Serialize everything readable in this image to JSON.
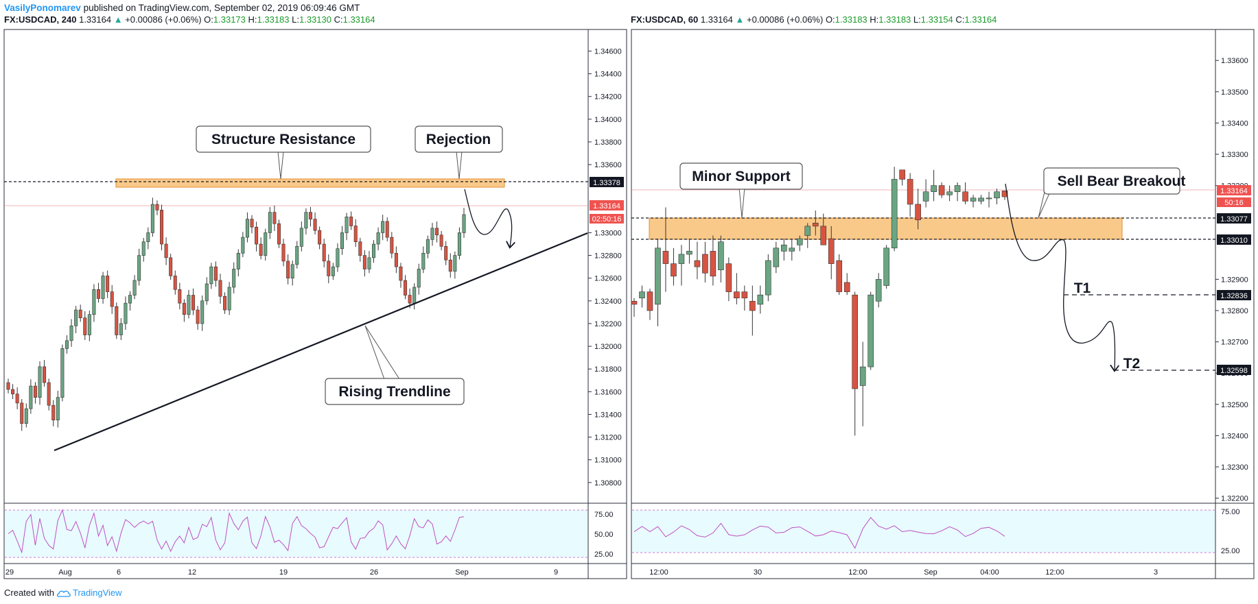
{
  "header": {
    "author": "VasilyPonomarev",
    "published_text": "published on TradingView.com, September 02, 2019 06:09:46 GMT"
  },
  "footer": {
    "created_with": "Created with",
    "brand": "TradingView"
  },
  "colors": {
    "up_candle": "#6ba583",
    "down_candle": "#d75442",
    "zone": "#f9c98a",
    "rsi_band": "#e8fbff",
    "rsi_line": "#c04fc1",
    "tv_blue": "#2196f3"
  },
  "left": {
    "quote": {
      "symbol": "FX:USDCAD, 240",
      "last": "1.33164",
      "change": "+0.00086 (+0.06%)",
      "o_label": "O:",
      "o": "1.33173",
      "h_label": "H:",
      "h": "1.33183",
      "l_label": "L:",
      "l": "1.33130",
      "c_label": "C:",
      "c": "1.33164"
    },
    "annotations": {
      "structure_resistance": "Structure Resistance",
      "rejection": "Rejection",
      "rising_trendline": "Rising Trendline"
    },
    "price_axis_ticks": [
      "1.34600",
      "1.34400",
      "1.34200",
      "1.34000",
      "1.33800",
      "1.33600",
      "1.33000",
      "1.32800",
      "1.32600",
      "1.32400",
      "1.32200",
      "1.32000",
      "1.31800",
      "1.31600",
      "1.31400",
      "1.31200",
      "1.31000",
      "1.30800"
    ],
    "price_badges": {
      "resistance": "1.33378",
      "last": "1.33164",
      "countdown": "02:50:16"
    },
    "rsi_ticks": [
      "75.00",
      "50.00",
      "25.00"
    ],
    "time_ticks": [
      "29",
      "Aug",
      "6",
      "12",
      "19",
      "26",
      "Sep",
      "9"
    ]
  },
  "right": {
    "quote": {
      "symbol": "FX:USDCAD, 60",
      "last": "1.33164",
      "change": "+0.00086 (+0.06%)",
      "o_label": "O:",
      "o": "1.33183",
      "h_label": "H:",
      "h": "1.33183",
      "l_label": "L:",
      "l": "1.33154",
      "c_label": "C:",
      "c": "1.33164"
    },
    "annotations": {
      "minor_support": "Minor Support",
      "sell_bear_breakout": "Sell Bear Breakout",
      "t1": "T1",
      "t2": "T2"
    },
    "price_axis_ticks": [
      "1.33600",
      "1.33500",
      "1.33400",
      "1.33300",
      "1.33200",
      "1.32900",
      "1.32800",
      "1.32700",
      "1.32600",
      "1.32500",
      "1.32400",
      "1.32300",
      "1.32200"
    ],
    "price_badges": {
      "last": "1.33164",
      "countdown": "50:16",
      "zone_top": "1.33077",
      "zone_bottom": "1.33010",
      "t1": "1.32836",
      "t2": "1.32598"
    },
    "rsi_ticks": [
      "75.00",
      "25.00"
    ],
    "time_ticks": [
      "12:00",
      "30",
      "12:00",
      "Sep",
      "04:00",
      "12:00",
      "3"
    ]
  },
  "chart_data": [
    {
      "type": "candlestick",
      "title": "FX:USDCAD, 240",
      "ylim": [
        1.3066,
        1.3476
      ],
      "time_labels": [
        "29",
        "Aug",
        "6",
        "12",
        "19",
        "26",
        "Sep",
        "9"
      ],
      "resistance_zone": [
        1.3336,
        1.3343
      ],
      "resistance_line": 1.33378,
      "last_price": 1.33164,
      "trendline": {
        "from": [
          "29",
          1.3106
        ],
        "to": [
          "9",
          1.3298
        ]
      },
      "candles_approx_close": [
        1.3162,
        1.3158,
        1.315,
        1.3132,
        1.3145,
        1.3165,
        1.3155,
        1.3182,
        1.3168,
        1.3148,
        1.3135,
        1.3155,
        1.3198,
        1.3205,
        1.3218,
        1.3232,
        1.3225,
        1.321,
        1.3228,
        1.325,
        1.3242,
        1.3262,
        1.3248,
        1.3235,
        1.321,
        1.322,
        1.3238,
        1.3245,
        1.3258,
        1.328,
        1.3292,
        1.33,
        1.3325,
        1.332,
        1.329,
        1.3278,
        1.3262,
        1.325,
        1.3238,
        1.3228,
        1.3245,
        1.3232,
        1.322,
        1.324,
        1.3255,
        1.327,
        1.3258,
        1.3244,
        1.3232,
        1.3252,
        1.3268,
        1.3282,
        1.3296,
        1.3312,
        1.3305,
        1.329,
        1.328,
        1.33,
        1.3318,
        1.3308,
        1.329,
        1.3275,
        1.326,
        1.3272,
        1.3288,
        1.3304,
        1.3318,
        1.3312,
        1.3302,
        1.329,
        1.3275,
        1.3262,
        1.327,
        1.3286,
        1.33,
        1.3314,
        1.3306,
        1.3292,
        1.328,
        1.3268,
        1.3278,
        1.329,
        1.33,
        1.331,
        1.3296,
        1.3282,
        1.327,
        1.3258,
        1.3245,
        1.3238,
        1.3252,
        1.3268,
        1.3282,
        1.3294,
        1.3304,
        1.3298,
        1.3288,
        1.3276,
        1.3266,
        1.328,
        1.33,
        1.3316
      ],
      "rsi": {
        "ticks": [
          75,
          50,
          25
        ]
      }
    },
    {
      "type": "candlestick",
      "title": "FX:USDCAD, 60",
      "ylim": [
        1.32175,
        1.33675
      ],
      "time_labels": [
        "12:00",
        "30",
        "12:00",
        "Sep",
        "04:00",
        "12:00",
        "3"
      ],
      "support_zone": [
        1.3301,
        1.33077
      ],
      "targets": {
        "T1": 1.32836,
        "T2": 1.32598
      },
      "last_price": 1.33164,
      "candles_ohlc": [
        [
          1.3283,
          1.3284,
          1.3278,
          1.3282
        ],
        [
          1.3284,
          1.3288,
          1.3281,
          1.3286
        ],
        [
          1.3286,
          1.3287,
          1.3277,
          1.328
        ],
        [
          1.3282,
          1.3303,
          1.3275,
          1.33
        ],
        [
          1.3299,
          1.3313,
          1.3286,
          1.3295
        ],
        [
          1.3295,
          1.33,
          1.3288,
          1.3291
        ],
        [
          1.3295,
          1.3301,
          1.3288,
          1.3298
        ],
        [
          1.3298,
          1.3303,
          1.3295,
          1.3299
        ],
        [
          1.3296,
          1.3302,
          1.329,
          1.3294
        ],
        [
          1.3298,
          1.3302,
          1.3289,
          1.3292
        ],
        [
          1.3299,
          1.3304,
          1.3288,
          1.3291
        ],
        [
          1.3293,
          1.3304,
          1.3289,
          1.3302
        ],
        [
          1.3295,
          1.3297,
          1.3283,
          1.3286
        ],
        [
          1.3286,
          1.3292,
          1.3282,
          1.3284
        ],
        [
          1.3286,
          1.3288,
          1.328,
          1.3284
        ],
        [
          1.3283,
          1.3288,
          1.3272,
          1.328
        ],
        [
          1.3282,
          1.3288,
          1.3279,
          1.3285
        ],
        [
          1.3285,
          1.3298,
          1.3283,
          1.3296
        ],
        [
          1.3294,
          1.3302,
          1.3292,
          1.33
        ],
        [
          1.3299,
          1.3303,
          1.3296,
          1.3301
        ],
        [
          1.3299,
          1.3303,
          1.3296,
          1.33
        ],
        [
          1.3301,
          1.3304,
          1.3299,
          1.3303
        ],
        [
          1.3304,
          1.3308,
          1.33,
          1.3307
        ],
        [
          1.3308,
          1.3312,
          1.3304,
          1.3307
        ],
        [
          1.3307,
          1.3311,
          1.3301,
          1.3301
        ],
        [
          1.3303,
          1.3307,
          1.329,
          1.3295
        ],
        [
          1.3296,
          1.3298,
          1.3285,
          1.3286
        ],
        [
          1.3289,
          1.3292,
          1.3285,
          1.3286
        ],
        [
          1.3285,
          1.3286,
          1.324,
          1.3255
        ],
        [
          1.3256,
          1.327,
          1.3243,
          1.3262
        ],
        [
          1.3262,
          1.3286,
          1.3261,
          1.3285
        ],
        [
          1.3283,
          1.3292,
          1.3281,
          1.329
        ],
        [
          1.3288,
          1.3301,
          1.3287,
          1.33
        ],
        [
          1.33,
          1.3326,
          1.3299,
          1.3322
        ],
        [
          1.3325,
          1.3325,
          1.332,
          1.3322
        ],
        [
          1.3322,
          1.3324,
          1.331,
          1.3314
        ],
        [
          1.3314,
          1.3319,
          1.3306,
          1.3309
        ],
        [
          1.3315,
          1.3322,
          1.3313,
          1.3318
        ],
        [
          1.3318,
          1.3325,
          1.3315,
          1.332
        ],
        [
          1.332,
          1.3321,
          1.3316,
          1.3317
        ],
        [
          1.3317,
          1.332,
          1.3315,
          1.3318
        ],
        [
          1.3318,
          1.3321,
          1.3315,
          1.332
        ],
        [
          1.3318,
          1.3321,
          1.3314,
          1.3315
        ],
        [
          1.3315,
          1.3317,
          1.3313,
          1.3316
        ],
        [
          1.3315,
          1.3317,
          1.3314,
          1.3316
        ],
        [
          1.3316,
          1.3318,
          1.3313,
          1.3316
        ],
        [
          1.3316,
          1.3319,
          1.3314,
          1.3318
        ],
        [
          1.33183,
          1.33183,
          1.33154,
          1.33164
        ]
      ],
      "rsi": {
        "ticks": [
          75,
          25
        ]
      }
    }
  ]
}
